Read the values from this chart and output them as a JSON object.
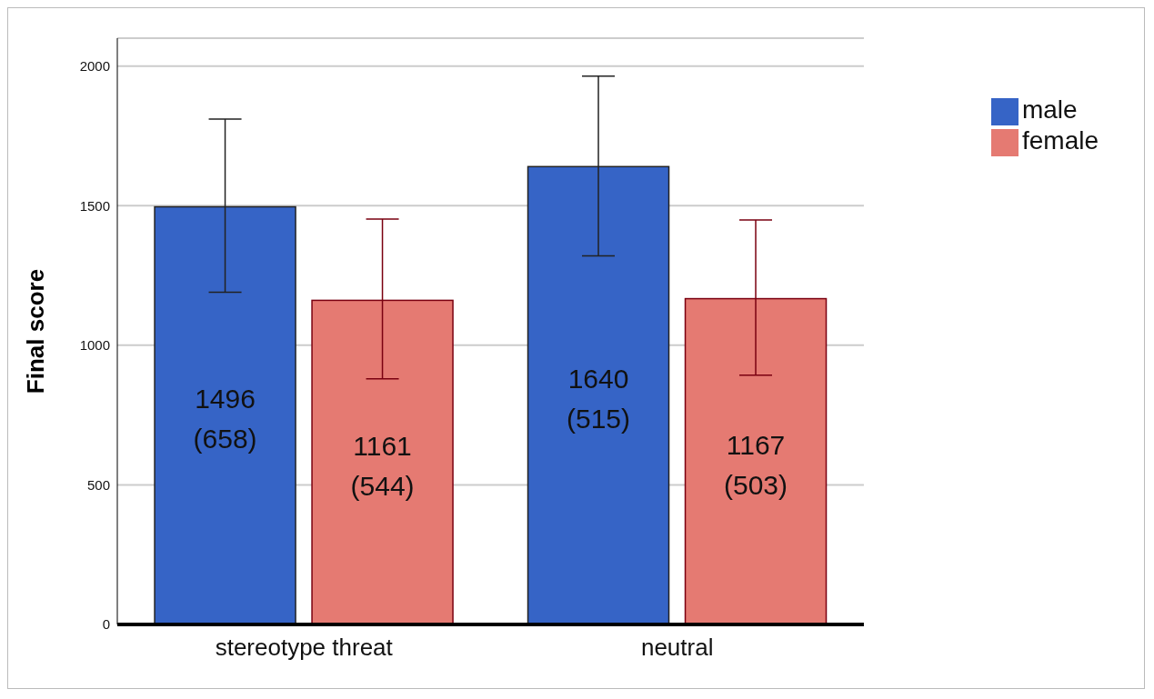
{
  "chart_data": {
    "type": "bar",
    "ylabel": "Final score",
    "categories": [
      "stereotype threat",
      "neutral"
    ],
    "series": [
      {
        "name": "male",
        "color": "#3664c6",
        "values": [
          1496,
          1640
        ],
        "errors": [
          [
            1190,
            1810
          ],
          [
            1320,
            1964
          ]
        ],
        "value_labels": [
          "1496\n(658)",
          "1640\n(515)"
        ]
      },
      {
        "name": "female",
        "color": "#e57a72",
        "values": [
          1161,
          1167
        ],
        "errors": [
          [
            880,
            1452
          ],
          [
            893,
            1449
          ]
        ],
        "value_labels": [
          "1161\n(544)",
          "1167\n(503)"
        ]
      }
    ],
    "ylim": [
      0,
      2100
    ],
    "yticks": [
      0,
      500,
      1000,
      1500,
      2000
    ],
    "grid": "y",
    "legend": "top right"
  }
}
